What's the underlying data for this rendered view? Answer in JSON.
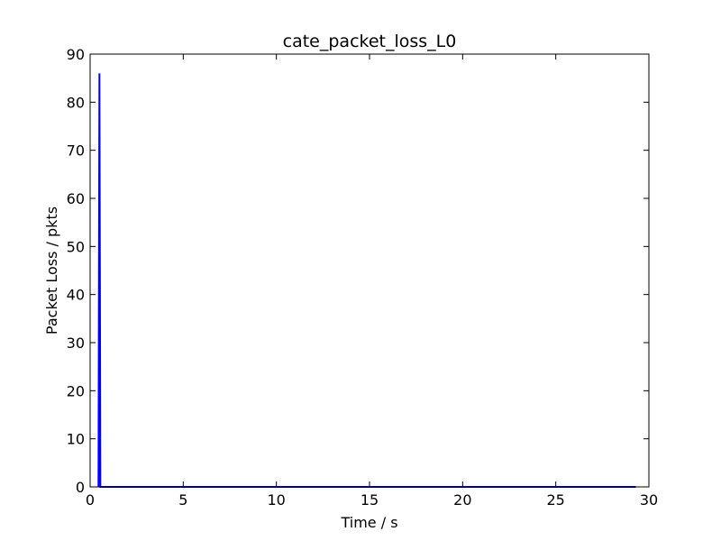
{
  "chart_data": {
    "type": "line",
    "title": "cate_packet_loss_L0",
    "xlabel": "Time / s",
    "ylabel": "Packet Loss / pkts",
    "xlim": [
      0,
      30
    ],
    "ylim": [
      0,
      90
    ],
    "x_ticks": [
      0,
      5,
      10,
      15,
      20,
      25,
      30
    ],
    "y_ticks": [
      0,
      10,
      20,
      30,
      40,
      50,
      60,
      70,
      80,
      90
    ],
    "grid": false,
    "series": [
      {
        "color": "#0000ff",
        "points": [
          {
            "x": 0.45,
            "y": 0
          },
          {
            "x": 0.5,
            "y": 86
          },
          {
            "x": 0.55,
            "y": 0
          },
          {
            "x": 29.3,
            "y": 0
          }
        ]
      }
    ]
  }
}
